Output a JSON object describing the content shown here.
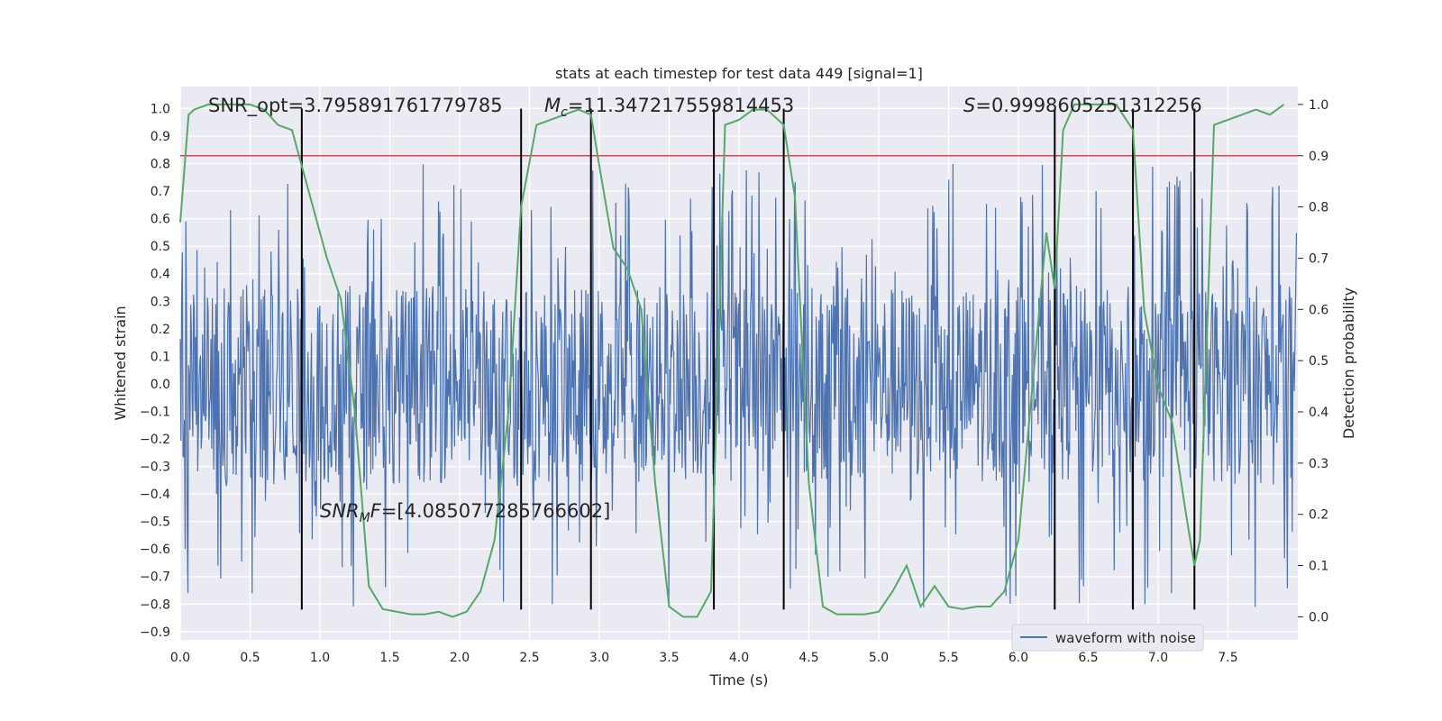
{
  "chart_data": {
    "type": "line",
    "title": "stats at each timestep for test data 449 [signal=1]",
    "xlabel": "Time (s)",
    "ylabel_left": "Whitened strain",
    "ylabel_right": "Detection probability",
    "xlim": [
      0.0,
      8.0
    ],
    "ylim_left": [
      -0.93,
      1.08
    ],
    "ylim_right": [
      -0.045,
      1.035
    ],
    "xticks": [
      "0.0",
      "0.5",
      "1.0",
      "1.5",
      "2.0",
      "2.5",
      "3.0",
      "3.5",
      "4.0",
      "4.5",
      "5.0",
      "5.5",
      "6.0",
      "6.5",
      "7.0",
      "7.5"
    ],
    "xtick_values": [
      0.0,
      0.5,
      1.0,
      1.5,
      2.0,
      2.5,
      3.0,
      3.5,
      4.0,
      4.5,
      5.0,
      5.5,
      6.0,
      6.5,
      7.0,
      7.5
    ],
    "yticks_left": [
      "1.0",
      "0.9",
      "0.8",
      "0.7",
      "0.6",
      "0.5",
      "0.4",
      "0.3",
      "0.2",
      "0.1",
      "0.0",
      "−0.1",
      "−0.2",
      "−0.3",
      "−0.4",
      "−0.5",
      "−0.6",
      "−0.7",
      "−0.8",
      "−0.9"
    ],
    "ytick_values_left": [
      1.0,
      0.9,
      0.8,
      0.7,
      0.6,
      0.5,
      0.4,
      0.3,
      0.2,
      0.1,
      0.0,
      -0.1,
      -0.2,
      -0.3,
      -0.4,
      -0.5,
      -0.6,
      -0.7,
      -0.8,
      -0.9
    ],
    "yticks_right": [
      "1.0",
      "0.9",
      "0.8",
      "0.7",
      "0.6",
      "0.5",
      "0.4",
      "0.3",
      "0.2",
      "0.1",
      "0.0"
    ],
    "ytick_values_right": [
      1.0,
      0.9,
      0.8,
      0.7,
      0.6,
      0.5,
      0.4,
      0.3,
      0.2,
      0.1,
      0.0
    ],
    "annotations": {
      "snr_opt": "SNR_opt=3.795891761779785",
      "mc_symbol": "M",
      "mc_sub": "c",
      "mc_value": "=11.347217559814453",
      "s_symbol": "S",
      "s_value": "=0.9998605251312256",
      "snr_mf_symbol": "SNR",
      "snr_mf_sub": "M",
      "snr_mf_f": "F",
      "snr_mf_value": "=[4.085077285766602]"
    },
    "threshold": {
      "value": 0.9,
      "axis": "right",
      "color": "#c44e52"
    },
    "vertical_lines": [
      0.87,
      2.44,
      2.94,
      3.82,
      4.32,
      6.26,
      6.82,
      7.26
    ],
    "vline_range": [
      -0.82,
      1.0
    ],
    "series": [
      {
        "name": "waveform with noise",
        "axis": "left",
        "color": "#4c72b0",
        "kind": "noise",
        "x_range": [
          0.0,
          7.99
        ],
        "n_samples": 1600,
        "core_amplitude": 0.36,
        "spike_max": 0.8,
        "spike_min": -0.82
      },
      {
        "name": "detection probability",
        "axis": "right",
        "color": "#55a868",
        "x": [
          0.0,
          0.06,
          0.1,
          0.2,
          0.3,
          0.4,
          0.5,
          0.6,
          0.7,
          0.8,
          0.87,
          0.95,
          1.05,
          1.15,
          1.25,
          1.35,
          1.45,
          1.55,
          1.65,
          1.75,
          1.85,
          1.95,
          2.05,
          2.15,
          2.25,
          2.35,
          2.44,
          2.55,
          2.65,
          2.75,
          2.85,
          2.94,
          3.0,
          3.1,
          3.2,
          3.3,
          3.4,
          3.5,
          3.6,
          3.7,
          3.8,
          3.9,
          4.0,
          4.1,
          4.2,
          4.32,
          4.4,
          4.5,
          4.6,
          4.7,
          4.8,
          4.9,
          5.0,
          5.1,
          5.2,
          5.3,
          5.4,
          5.5,
          5.6,
          5.7,
          5.8,
          5.9,
          6.0,
          6.1,
          6.2,
          6.26,
          6.32,
          6.4,
          6.5,
          6.6,
          6.7,
          6.82,
          6.9,
          7.0,
          7.1,
          7.2,
          7.26,
          7.3,
          7.4,
          7.5,
          7.6,
          7.7,
          7.8,
          7.9
        ],
        "values": [
          0.77,
          0.98,
          0.99,
          1.0,
          1.0,
          1.0,
          1.0,
          0.99,
          0.96,
          0.95,
          0.88,
          0.8,
          0.7,
          0.62,
          0.4,
          0.06,
          0.015,
          0.01,
          0.005,
          0.005,
          0.01,
          0.0,
          0.01,
          0.05,
          0.15,
          0.4,
          0.8,
          0.96,
          0.97,
          0.98,
          0.99,
          0.98,
          0.88,
          0.72,
          0.68,
          0.6,
          0.26,
          0.02,
          0.0,
          0.0,
          0.05,
          0.96,
          0.97,
          0.99,
          0.99,
          0.96,
          0.82,
          0.26,
          0.02,
          0.005,
          0.005,
          0.005,
          0.01,
          0.05,
          0.1,
          0.02,
          0.06,
          0.02,
          0.015,
          0.02,
          0.02,
          0.05,
          0.15,
          0.45,
          0.75,
          0.64,
          0.95,
          1.0,
          1.0,
          1.0,
          1.0,
          0.95,
          0.6,
          0.45,
          0.38,
          0.2,
          0.1,
          0.15,
          0.96,
          0.97,
          0.98,
          0.99,
          0.98,
          1.0
        ]
      }
    ],
    "legend": {
      "position": "lower-right",
      "entries": [
        {
          "label": "waveform with noise",
          "color": "#4c72b0"
        }
      ]
    },
    "background_color": "#eaeaf2",
    "grid": true
  }
}
